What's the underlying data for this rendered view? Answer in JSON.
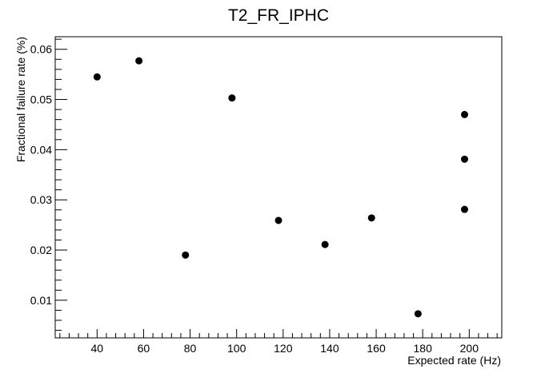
{
  "chart_data": {
    "type": "scatter",
    "title": "T2_FR_IPHC",
    "xlabel": "Expected rate (Hz)",
    "ylabel": "Fractional failure rate (%)",
    "xlim": [
      22,
      214
    ],
    "ylim": [
      0.0025,
      0.0625
    ],
    "xticks": [
      40,
      60,
      80,
      100,
      120,
      140,
      160,
      180,
      200
    ],
    "xtick_labels": [
      "40",
      "60",
      "80",
      "100",
      "120",
      "140",
      "160",
      "180",
      "200"
    ],
    "yticks": [
      0.01,
      0.02,
      0.03,
      0.04,
      0.05,
      0.06
    ],
    "ytick_labels": [
      "0.01",
      "0.02",
      "0.03",
      "0.04",
      "0.05",
      "0.06"
    ],
    "grid": false,
    "series": [
      {
        "color": "#000000",
        "points": [
          {
            "x": 40,
            "y": 0.0545
          },
          {
            "x": 58,
            "y": 0.0577
          },
          {
            "x": 78,
            "y": 0.019
          },
          {
            "x": 98,
            "y": 0.0503
          },
          {
            "x": 118,
            "y": 0.0259
          },
          {
            "x": 138,
            "y": 0.0211
          },
          {
            "x": 158,
            "y": 0.0264
          },
          {
            "x": 178,
            "y": 0.0073
          },
          {
            "x": 198,
            "y": 0.047
          },
          {
            "x": 198,
            "y": 0.0381
          },
          {
            "x": 198,
            "y": 0.0281
          }
        ]
      }
    ]
  }
}
